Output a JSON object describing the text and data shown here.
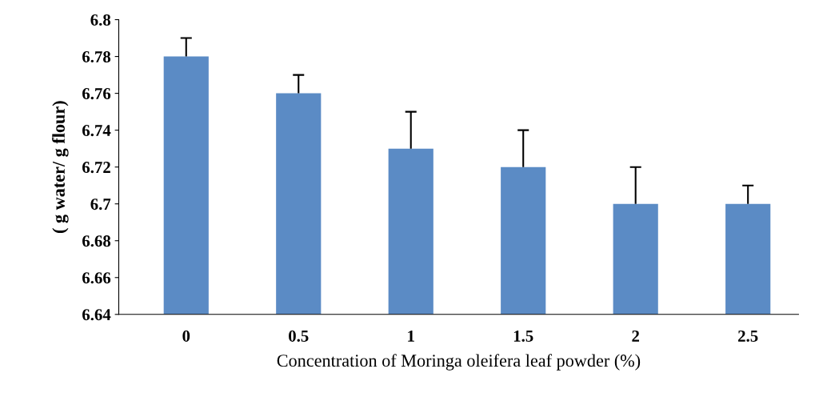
{
  "chart_data": {
    "type": "bar",
    "ylabel": "( g water/ g flour)",
    "xlabel": "Concentration of Moringa oleifera leaf powder (%)",
    "categories": [
      "0",
      "0.5",
      "1",
      "1.5",
      "2",
      "2.5"
    ],
    "values": [
      6.78,
      6.76,
      6.73,
      6.72,
      6.7,
      6.7
    ],
    "errors": [
      [
        6.78,
        6.79
      ],
      [
        6.76,
        6.77
      ],
      [
        6.73,
        6.75
      ],
      [
        6.72,
        6.74
      ],
      [
        6.7,
        6.72
      ],
      [
        6.7,
        6.71
      ]
    ],
    "color": "#5b8bc5",
    "ylim": [
      6.64,
      6.8
    ],
    "yticks": [
      {
        "value": 6.64,
        "label": "6.64"
      },
      {
        "value": 6.66,
        "label": "6.66"
      },
      {
        "value": 6.68,
        "label": "6.68"
      },
      {
        "value": 6.7,
        "label": "6.7"
      },
      {
        "value": 6.72,
        "label": "6.72"
      },
      {
        "value": 6.74,
        "label": "6.74"
      },
      {
        "value": 6.76,
        "label": "6.76"
      },
      {
        "value": 6.78,
        "label": "6.78"
      },
      {
        "value": 6.8,
        "label": "6.8"
      }
    ],
    "grid": false,
    "legend": false
  }
}
